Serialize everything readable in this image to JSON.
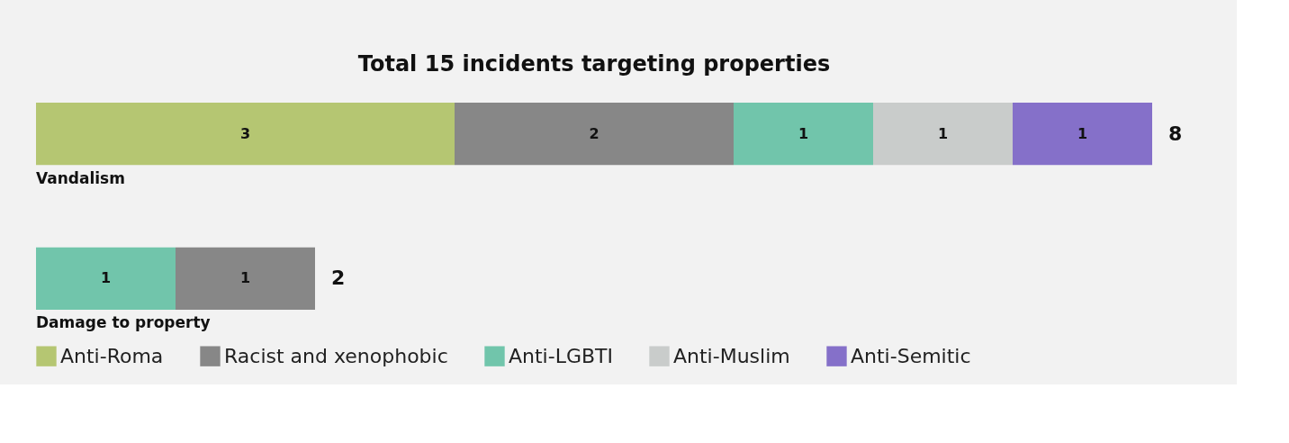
{
  "chart_data": {
    "type": "bar",
    "orientation": "horizontal",
    "stacked": true,
    "title": "Total 15 incidents targeting properties",
    "categories": [
      "Vandalism",
      "Damage to property"
    ],
    "series": [
      {
        "name": "Anti-Roma",
        "color": "#b5c672",
        "values": [
          3,
          null
        ]
      },
      {
        "name": "Racist and xenophobic",
        "color": "#878787",
        "values": [
          2,
          null
        ]
      },
      {
        "name": "Anti-LGBTI",
        "color": "#71c5ab",
        "values": [
          1,
          1
        ]
      },
      {
        "name": "Anti-Muslim",
        "color": "#c9cccb",
        "values": [
          1,
          null
        ]
      },
      {
        "name": "Anti-Semitic",
        "color": "#8570c9",
        "values": [
          1,
          null
        ]
      },
      {
        "color": "#878787",
        "values": [
          null,
          1
        ]
      }
    ],
    "totals": [
      "8",
      "2"
    ],
    "data_labels": true,
    "legend": "bottom left"
  }
}
